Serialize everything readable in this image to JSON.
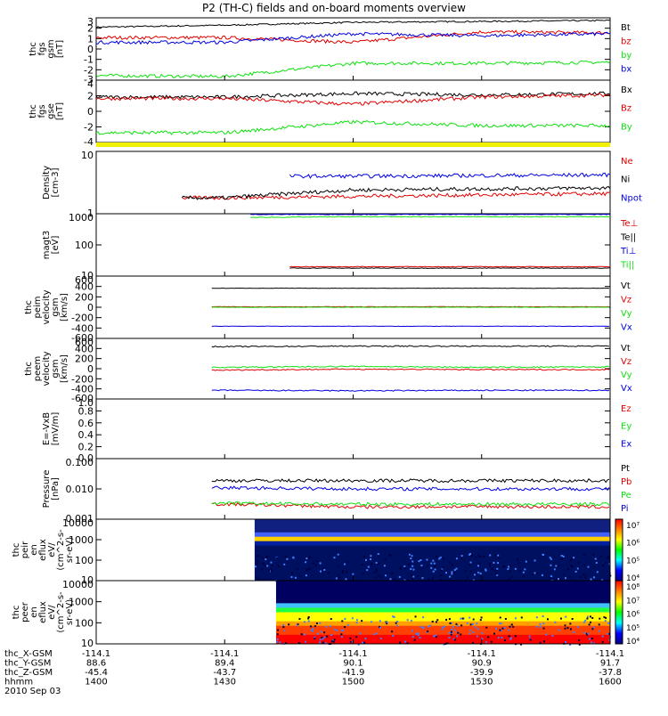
{
  "title": "P2 (TH-C) fields and on-board moments overview",
  "colors": {
    "black": "#000000",
    "red": "#e00000",
    "green": "#10e010",
    "blue": "#0000e0",
    "yellow": "#f0f000"
  },
  "panels": [
    {
      "id": "fgs-gsm",
      "ylabel": [
        "thc",
        "fgs",
        "gsm",
        "[nT]"
      ],
      "ticks": [
        "3",
        "2",
        "1",
        "0",
        "-1",
        "-2",
        "-3"
      ],
      "legend": [
        {
          "text": "Bt",
          "color": "black"
        },
        {
          "text": "bz",
          "color": "red"
        },
        {
          "text": "by",
          "color": "green"
        },
        {
          "text": "bx",
          "color": "blue"
        }
      ]
    },
    {
      "id": "fgs-gse",
      "ylabel": [
        "thc",
        "fgs",
        "gse",
        "[nT]"
      ],
      "ticks": [
        "4",
        "2",
        "0",
        "-2",
        "-4"
      ],
      "legend": [
        {
          "text": "Bx",
          "color": "black"
        },
        {
          "text": "Bz",
          "color": "red"
        },
        {
          "text": "By",
          "color": "green"
        }
      ]
    },
    {
      "id": "density",
      "ylabel": [
        "Density",
        "[cm-3]"
      ],
      "ticks": [
        "10",
        "1"
      ],
      "legend": [
        {
          "text": "Ne",
          "color": "red"
        },
        {
          "text": "Ni",
          "color": "black"
        },
        {
          "text": "Npot",
          "color": "blue"
        }
      ]
    },
    {
      "id": "temperature",
      "ylabel": [
        "magt3",
        "[eV]"
      ],
      "ticks": [
        "1000",
        "100",
        "10"
      ],
      "legend": [
        {
          "text": "Te⊥",
          "color": "red"
        },
        {
          "text": "Te||",
          "color": "black"
        },
        {
          "text": "Ti⊥",
          "color": "blue"
        },
        {
          "text": "Ti||",
          "color": "green"
        }
      ]
    },
    {
      "id": "peim-velocity",
      "ylabel": [
        "thc",
        "peim",
        "velocity",
        "gsm",
        "[km/s]"
      ],
      "ticks": [
        "600",
        "400",
        "200",
        "0",
        "-200",
        "-400",
        "-600"
      ],
      "legend": [
        {
          "text": "Vt",
          "color": "black"
        },
        {
          "text": "Vz",
          "color": "red"
        },
        {
          "text": "Vy",
          "color": "green"
        },
        {
          "text": "Vx",
          "color": "blue"
        }
      ]
    },
    {
      "id": "peem-velocity",
      "ylabel": [
        "thc",
        "peem",
        "velocity",
        "gsm",
        "[km/s]"
      ],
      "ticks": [
        "600",
        "400",
        "200",
        "0",
        "-200",
        "-400",
        "-600"
      ],
      "legend": [
        {
          "text": "Vt",
          "color": "black"
        },
        {
          "text": "Vz",
          "color": "red"
        },
        {
          "text": "Vy",
          "color": "green"
        },
        {
          "text": "Vx",
          "color": "blue"
        }
      ]
    },
    {
      "id": "efield",
      "ylabel": [
        "E=-VxB",
        "[mV/m]"
      ],
      "ticks": [
        "1.0",
        "0.8",
        "0.6",
        "0.4",
        "0.2",
        "0.0"
      ],
      "legend": [
        {
          "text": "Ez",
          "color": "red"
        },
        {
          "text": "Ey",
          "color": "green"
        },
        {
          "text": "Ex",
          "color": "blue"
        }
      ]
    },
    {
      "id": "pressure",
      "ylabel": [
        "Pressure",
        "[nPa]"
      ],
      "ticks": [
        "0.100",
        "0.010",
        "0.001"
      ],
      "legend": [
        {
          "text": "Pt",
          "color": "black"
        },
        {
          "text": "Pb",
          "color": "red"
        },
        {
          "text": "Pe",
          "color": "green"
        },
        {
          "text": "Pi",
          "color": "blue"
        }
      ]
    },
    {
      "id": "peir-spec",
      "ylabel": [
        "thc",
        "peir",
        "en",
        "eflux",
        "eV/",
        "(cm^2-s-",
        "sr-eV)"
      ],
      "ticks": [
        "10000",
        "1000",
        "100",
        "10"
      ],
      "colorbar": [
        "10⁷",
        "10⁶",
        "10⁵",
        "10⁴"
      ]
    },
    {
      "id": "peer-spec",
      "ylabel": [
        "thc",
        "peer",
        "en",
        "eflux",
        "eV/",
        "(cm^2-s-",
        "sr-eV)"
      ],
      "ticks": [
        "10000",
        "1000",
        "100",
        "10"
      ],
      "colorbar": [
        "10⁸",
        "10⁷",
        "10⁶",
        "10⁵",
        "10⁴"
      ]
    }
  ],
  "xaxis": {
    "labels": [
      "thc_X-GSM",
      "thc_Y-GSM",
      "thc_Z-GSM",
      "hhmm",
      "2010 Sep 03"
    ],
    "columns": [
      [
        "-114.1",
        "88.6",
        "-45.4",
        "1400"
      ],
      [
        "-114.1",
        "89.4",
        "-43.7",
        "1430"
      ],
      [
        "-114.1",
        "90.1",
        "-41.9",
        "1500"
      ],
      [
        "-114.1",
        "90.9",
        "-39.9",
        "1530"
      ],
      [
        "-114.1",
        "91.7",
        "-37.8",
        "1600"
      ]
    ]
  },
  "chart_data": {
    "type": "line",
    "title": "P2 (TH-C) fields and on-board moments overview",
    "x": [
      "1400",
      "1430",
      "1500",
      "1530",
      "1600"
    ],
    "xlabel": "hhmm",
    "date": "2010 Sep 03",
    "panels": [
      {
        "name": "thc fgs gsm [nT]",
        "ylim": [
          -3,
          3
        ],
        "series": [
          {
            "name": "Bt",
            "values": [
              2.3,
              2.5,
              2.8,
              2.9,
              3.0
            ]
          },
          {
            "name": "bz",
            "values": [
              1.2,
              1.2,
              0.7,
              1.8,
              1.7
            ]
          },
          {
            "name": "by",
            "values": [
              -2.8,
              -2.9,
              -1.5,
              -1.5,
              -1.4
            ]
          },
          {
            "name": "bx",
            "values": [
              0.7,
              0.7,
              1.6,
              1.4,
              1.6
            ]
          }
        ]
      },
      {
        "name": "thc fgs gse [nT]",
        "ylim": [
          -4,
          4
        ],
        "series": [
          {
            "name": "Bx",
            "values": [
              2.0,
              2.0,
              2.5,
              2.3,
              2.5
            ]
          },
          {
            "name": "Bz",
            "values": [
              1.8,
              1.8,
              1.0,
              2.0,
              2.3
            ]
          },
          {
            "name": "By",
            "values": [
              -3.0,
              -3.0,
              -1.5,
              -2.0,
              -2.0
            ]
          }
        ]
      },
      {
        "name": "Density [cm-3]",
        "scale": "log",
        "ylim": [
          1,
          10
        ],
        "series": [
          {
            "name": "Ne",
            "values": [
              null,
              1.8,
              1.9,
              2.0,
              2.1
            ]
          },
          {
            "name": "Ni",
            "values": [
              null,
              1.8,
              2.4,
              2.5,
              2.6
            ]
          },
          {
            "name": "Npot",
            "values": [
              null,
              null,
              4.0,
              4.1,
              4.2
            ]
          }
        ]
      },
      {
        "name": "magt3 [eV]",
        "scale": "log",
        "ylim": [
          10,
          1000
        ],
        "series": [
          {
            "name": "Te⊥",
            "values": [
              null,
              null,
              20,
              20,
              20
            ]
          },
          {
            "name": "Te||",
            "values": [
              null,
              null,
              18,
              18,
              18
            ]
          },
          {
            "name": "Ti⊥",
            "values": [
              null,
              950,
              950,
              950,
              950
            ]
          },
          {
            "name": "Ti||",
            "values": [
              null,
              750,
              800,
              800,
              800
            ]
          }
        ]
      },
      {
        "name": "thc peim velocity gsm [km/s]",
        "ylim": [
          -600,
          600
        ],
        "series": [
          {
            "name": "Vt",
            "values": [
              null,
              400,
              400,
              400,
              400
            ]
          },
          {
            "name": "Vz",
            "values": [
              null,
              10,
              10,
              10,
              10
            ]
          },
          {
            "name": "Vy",
            "values": [
              null,
              0,
              0,
              0,
              0
            ]
          },
          {
            "name": "Vx",
            "values": [
              null,
              -400,
              -400,
              -400,
              -400
            ]
          }
        ]
      },
      {
        "name": "thc peem velocity gsm [km/s]",
        "ylim": [
          -600,
          600
        ],
        "series": [
          {
            "name": "Vt",
            "values": [
              null,
              480,
              490,
              490,
              490
            ]
          },
          {
            "name": "Vz",
            "values": [
              null,
              -30,
              -10,
              -20,
              -20
            ]
          },
          {
            "name": "Vy",
            "values": [
              null,
              30,
              50,
              30,
              40
            ]
          },
          {
            "name": "Vx",
            "values": [
              null,
              -470,
              -480,
              -470,
              -470
            ]
          }
        ]
      },
      {
        "name": "E=-VxB [mV/m]",
        "ylim": [
          0,
          1
        ],
        "series": []
      },
      {
        "name": "Pressure [nPa]",
        "scale": "log",
        "ylim": [
          0.001,
          0.1
        ],
        "series": [
          {
            "name": "Pt",
            "values": [
              null,
              0.02,
              0.02,
              0.02,
              0.02
            ]
          },
          {
            "name": "Pb",
            "values": [
              null,
              0.0028,
              0.0022,
              0.0023,
              0.0022
            ]
          },
          {
            "name": "Pe",
            "values": [
              null,
              0.003,
              0.0028,
              0.0028,
              0.0028
            ]
          },
          {
            "name": "Pi",
            "values": [
              null,
              0.011,
              0.01,
              0.01,
              0.01
            ]
          }
        ]
      }
    ]
  }
}
